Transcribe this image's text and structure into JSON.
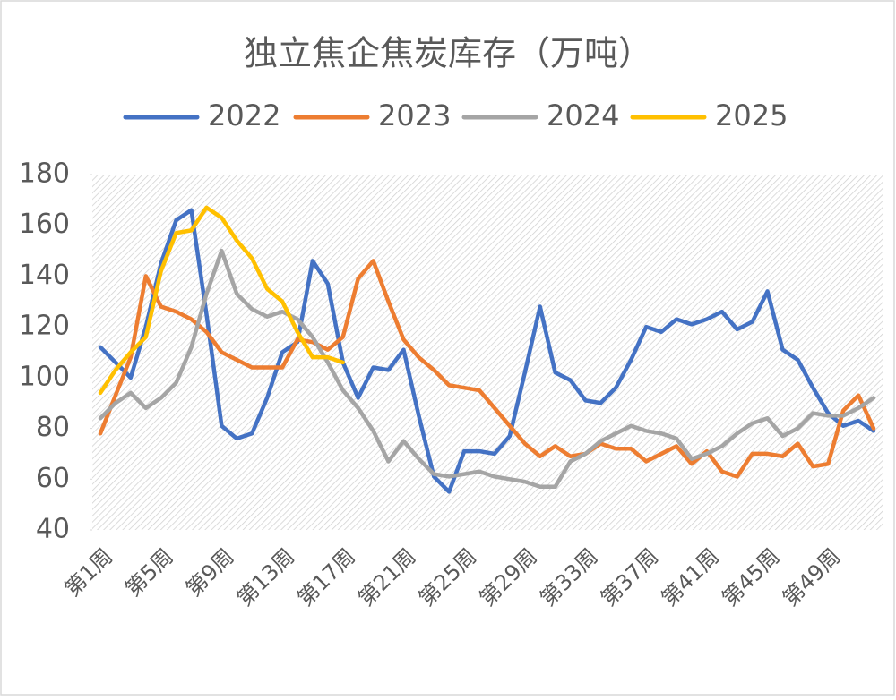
{
  "chart_data": {
    "type": "line",
    "title": "独立焦企焦炭库存（万吨）",
    "categories": [
      "第1周",
      null,
      null,
      null,
      "第5周",
      null,
      null,
      null,
      "第9周",
      null,
      null,
      null,
      "第13周",
      null,
      null,
      null,
      "第17周",
      null,
      null,
      null,
      "第21周",
      null,
      null,
      null,
      "第25周",
      null,
      null,
      null,
      "第29周",
      null,
      null,
      null,
      "第33周",
      null,
      null,
      null,
      "第37周",
      null,
      null,
      null,
      "第41周",
      null,
      null,
      null,
      "第45周",
      null,
      null,
      null,
      "第49周",
      null,
      null,
      null
    ],
    "series": [
      {
        "name": "2022",
        "color": "#4472c4",
        "values": [
          112,
          106,
          100,
          120,
          145,
          162,
          166,
          125,
          81,
          76,
          78,
          92,
          110,
          114,
          146,
          137,
          106,
          92,
          104,
          103,
          111,
          85,
          61,
          55,
          71,
          71,
          70,
          77,
          102,
          128,
          102,
          99,
          91,
          90,
          96,
          107,
          120,
          118,
          123,
          121,
          123,
          126,
          119,
          122,
          134,
          111,
          107,
          96,
          86,
          81,
          83,
          79
        ]
      },
      {
        "name": "2023",
        "color": "#ed7d31",
        "values": [
          78,
          93,
          108,
          140,
          128,
          126,
          123,
          118,
          110,
          107,
          104,
          104,
          104,
          115,
          114,
          111,
          116,
          139,
          146,
          130,
          115,
          108,
          103,
          97,
          96,
          95,
          88,
          81,
          74,
          69,
          73,
          69,
          70,
          74,
          72,
          72,
          67,
          70,
          73,
          66,
          71,
          63,
          61,
          70,
          70,
          69,
          74,
          65,
          66,
          87,
          93,
          80
        ]
      },
      {
        "name": "2024",
        "color": "#a5a5a5",
        "values": [
          84,
          90,
          94,
          88,
          92,
          98,
          112,
          133,
          150,
          133,
          127,
          124,
          126,
          123,
          116,
          106,
          95,
          88,
          79,
          67,
          75,
          68,
          62,
          61,
          62,
          63,
          61,
          60,
          59,
          57,
          57,
          67,
          70,
          75,
          78,
          81,
          79,
          78,
          76,
          68,
          70,
          73,
          78,
          82,
          84,
          77,
          80,
          86,
          85,
          85,
          88,
          92
        ]
      },
      {
        "name": "2025",
        "color": "#ffc000",
        "values": [
          94,
          103,
          110,
          116,
          142,
          157,
          158,
          167,
          163,
          154,
          147,
          135,
          130,
          118,
          108,
          108,
          106,
          null,
          null,
          null,
          null,
          null,
          null,
          null,
          null,
          null,
          null,
          null,
          null,
          null,
          null,
          null,
          null,
          null,
          null,
          null,
          null,
          null,
          null,
          null,
          null,
          null,
          null,
          null,
          null,
          null,
          null,
          null,
          null,
          null,
          null,
          null
        ]
      }
    ],
    "ylim": [
      40,
      180
    ],
    "yticks": [
      40,
      60,
      80,
      100,
      120,
      140,
      160,
      180
    ],
    "legend": "top"
  }
}
